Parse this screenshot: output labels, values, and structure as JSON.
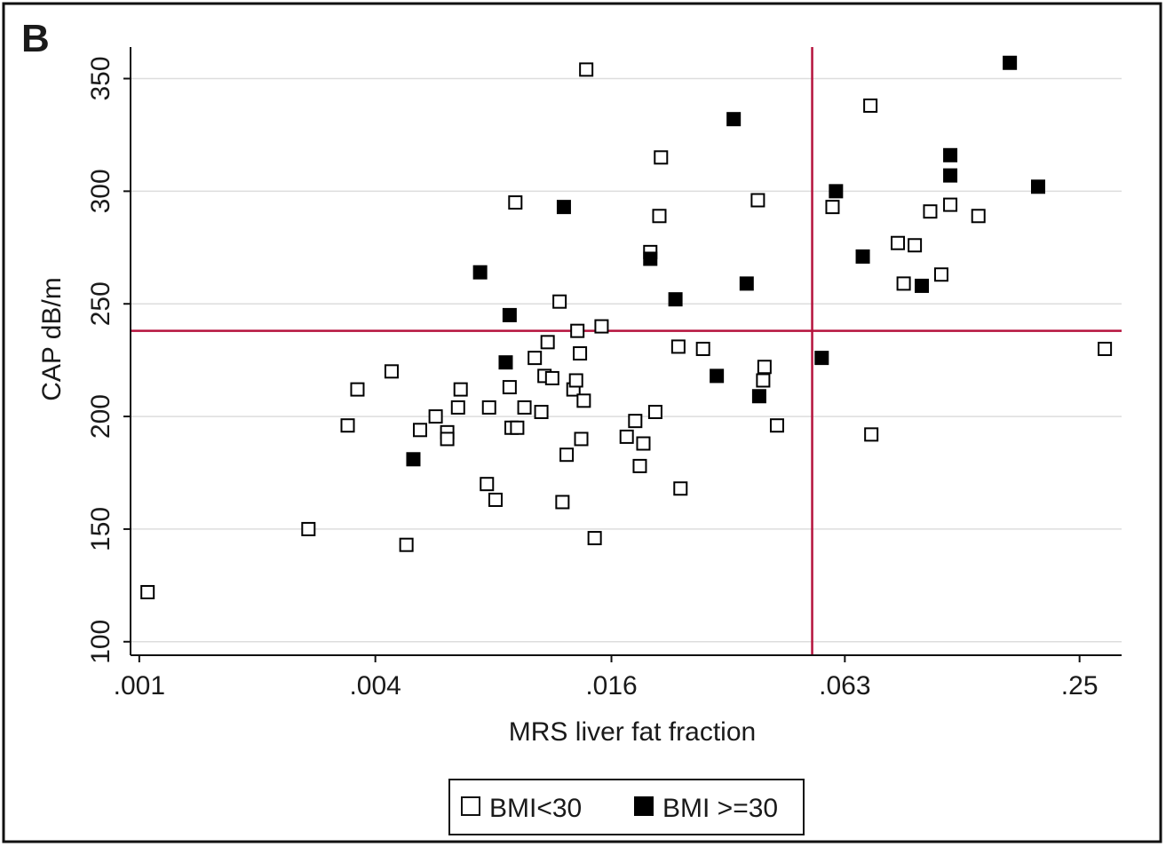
{
  "panel_label": "B",
  "chart_data": {
    "type": "scatter",
    "title": "",
    "xlabel": "MRS liver fat fraction",
    "ylabel": "CAP dB/m",
    "x_scale": "log2",
    "xlim": [
      0.00095,
      0.32
    ],
    "ylim": [
      94,
      364
    ],
    "x_ticks": [
      0.001,
      0.004,
      0.016,
      0.063,
      0.25
    ],
    "x_tick_labels": [
      ".001",
      ".004",
      ".016",
      ".063",
      ".25"
    ],
    "y_ticks": [
      100,
      150,
      200,
      250,
      300,
      350
    ],
    "y_tick_labels": [
      "100",
      "150",
      "200",
      "250",
      "300",
      "350"
    ],
    "grid": "horizontal",
    "legend_position": "bottom",
    "reference_lines": {
      "x": 0.052,
      "y": 238
    },
    "colors": {
      "reference_line": "#b5123c",
      "open_marker": "#ffffff",
      "filled_marker": "#000000",
      "frame": "#111111",
      "grid": "#dddddd"
    },
    "series": [
      {
        "name": "BMI<30",
        "marker": "open-square",
        "points": [
          [
            0.00105,
            122
          ],
          [
            0.0027,
            150
          ],
          [
            0.0034,
            196
          ],
          [
            0.0036,
            212
          ],
          [
            0.0044,
            220
          ],
          [
            0.0048,
            143
          ],
          [
            0.0052,
            194
          ],
          [
            0.0057,
            200
          ],
          [
            0.0061,
            193
          ],
          [
            0.0061,
            190
          ],
          [
            0.0065,
            204
          ],
          [
            0.0066,
            212
          ],
          [
            0.0077,
            170
          ],
          [
            0.0078,
            204
          ],
          [
            0.0081,
            163
          ],
          [
            0.0088,
            213
          ],
          [
            0.0089,
            195
          ],
          [
            0.0091,
            295
          ],
          [
            0.0092,
            195
          ],
          [
            0.0096,
            204
          ],
          [
            0.0102,
            226
          ],
          [
            0.0106,
            202
          ],
          [
            0.0108,
            218
          ],
          [
            0.011,
            233
          ],
          [
            0.0113,
            217
          ],
          [
            0.0118,
            251
          ],
          [
            0.012,
            162
          ],
          [
            0.0123,
            183
          ],
          [
            0.0128,
            212
          ],
          [
            0.013,
            216
          ],
          [
            0.0131,
            238
          ],
          [
            0.0133,
            228
          ],
          [
            0.0134,
            190
          ],
          [
            0.0136,
            207
          ],
          [
            0.0138,
            354
          ],
          [
            0.0145,
            146
          ],
          [
            0.0151,
            240
          ],
          [
            0.0175,
            191
          ],
          [
            0.0184,
            198
          ],
          [
            0.0189,
            178
          ],
          [
            0.0193,
            188
          ],
          [
            0.0201,
            273
          ],
          [
            0.0207,
            202
          ],
          [
            0.0212,
            289
          ],
          [
            0.0214,
            315
          ],
          [
            0.0237,
            231
          ],
          [
            0.024,
            168
          ],
          [
            0.0274,
            230
          ],
          [
            0.0378,
            296
          ],
          [
            0.039,
            216
          ],
          [
            0.0393,
            222
          ],
          [
            0.0423,
            196
          ],
          [
            0.0586,
            293
          ],
          [
            0.0732,
            338
          ],
          [
            0.0736,
            192
          ],
          [
            0.086,
            277
          ],
          [
            0.089,
            259
          ],
          [
            0.095,
            276
          ],
          [
            0.104,
            291
          ],
          [
            0.111,
            263
          ],
          [
            0.117,
            294
          ],
          [
            0.138,
            289
          ],
          [
            0.29,
            230
          ]
        ]
      },
      {
        "name": "BMI >=30",
        "marker": "filled-square",
        "points": [
          [
            0.005,
            181
          ],
          [
            0.0074,
            264
          ],
          [
            0.0086,
            224
          ],
          [
            0.0088,
            245
          ],
          [
            0.0121,
            293
          ],
          [
            0.0201,
            270
          ],
          [
            0.0233,
            252
          ],
          [
            0.0297,
            218
          ],
          [
            0.0328,
            332
          ],
          [
            0.0354,
            259
          ],
          [
            0.0381,
            209
          ],
          [
            0.055,
            226
          ],
          [
            0.0598,
            300
          ],
          [
            0.07,
            271
          ],
          [
            0.099,
            258
          ],
          [
            0.117,
            316
          ],
          [
            0.117,
            307
          ],
          [
            0.166,
            357
          ],
          [
            0.196,
            302
          ]
        ]
      }
    ]
  }
}
